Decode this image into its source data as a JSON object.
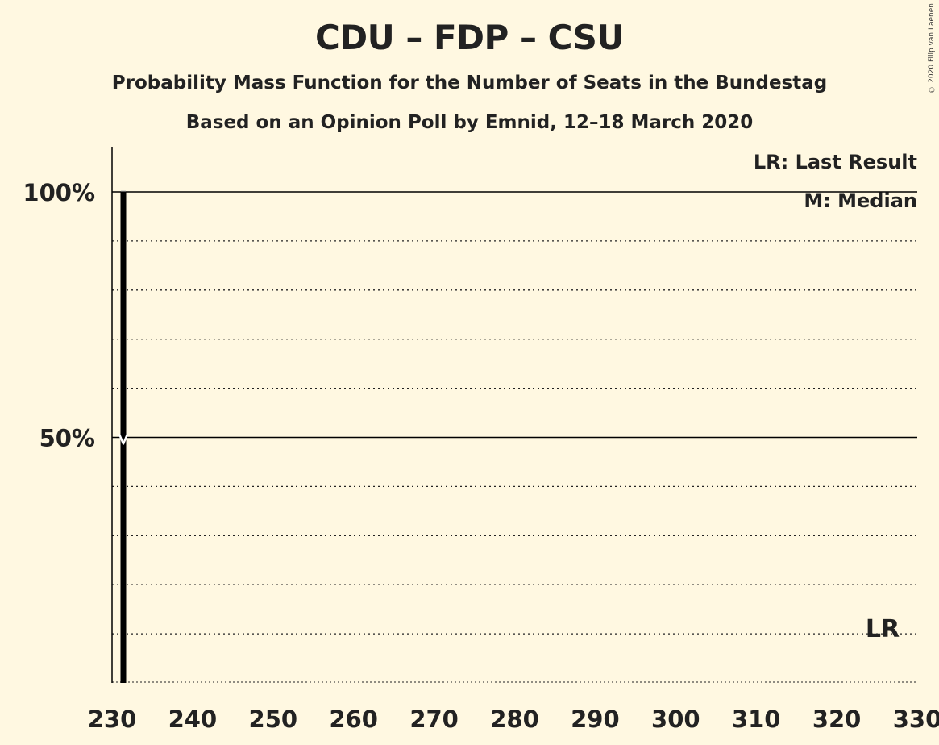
{
  "copyright": "© 2020 Filip van Laenen",
  "chart_data": {
    "type": "bar",
    "title": "CDU – FDP – CSU",
    "subtitle": "Probability Mass Function for the Number of Seats in the Bundestag",
    "subtitle2": "Based on an Opinion Poll by Emnid, 12–18 March 2020",
    "xlabel": "",
    "ylabel": "",
    "x": [
      231
    ],
    "values": [
      100
    ],
    "xlim": [
      230,
      330
    ],
    "ylim": [
      0,
      100
    ],
    "x_ticks": [
      "230",
      "240",
      "250",
      "260",
      "270",
      "280",
      "290",
      "300",
      "310",
      "320",
      "330"
    ],
    "y_ticks": [
      {
        "value": 100,
        "label": "100%"
      },
      {
        "value": 50,
        "label": "50%"
      }
    ],
    "median": 231,
    "median_marker": "M",
    "last_result": 326,
    "last_result_label": "LR",
    "legend": [
      "LR: Last Result",
      "M: Median"
    ],
    "legend_position": "top-right",
    "grid": "dotted every 10%",
    "colors": {
      "bar": "#000000",
      "background": "#fff8e1",
      "grid": "#222222"
    }
  }
}
